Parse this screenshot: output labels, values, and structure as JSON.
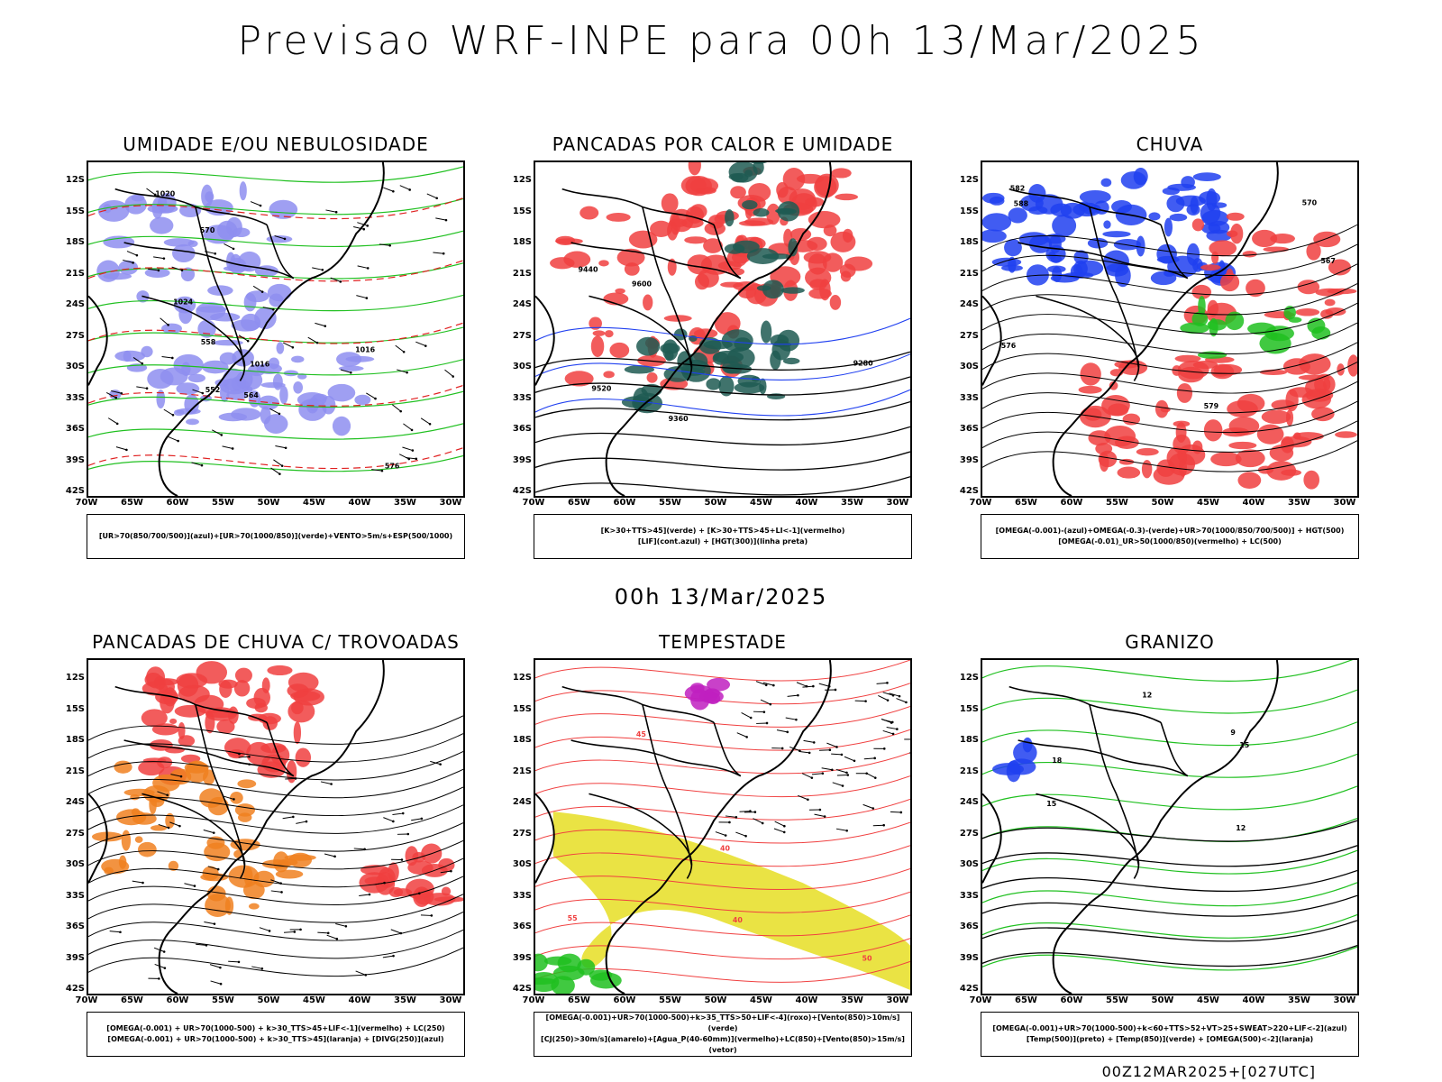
{
  "title": "Previsao WRF-INPE  para 00h 13/Mar/2025",
  "subtitle": "00h 13/Mar/2025",
  "footer": "00Z12MAR2025+[027UTC]",
  "axes": {
    "lat_labels": [
      "12S",
      "15S",
      "18S",
      "21S",
      "24S",
      "27S",
      "30S",
      "33S",
      "36S",
      "39S",
      "42S"
    ],
    "lon_labels": [
      "70W",
      "65W",
      "60W",
      "55W",
      "50W",
      "45W",
      "40W",
      "35W",
      "30W"
    ]
  },
  "panels": [
    {
      "title": "UMIDADE E/OU NEBULOSIDADE",
      "legend": [
        "[UR>70(850/700/500)](azul)+[UR>70(1000/850)](verde)+VENTO>5m/s+ESP(500/1000)"
      ],
      "colors": {
        "blue": "#8e8ef0",
        "green": "#20c020",
        "red": "#e02020"
      },
      "contour_labels": [
        "1016",
        "1024",
        "1020",
        "1016",
        "576",
        "570",
        "564",
        "558",
        "552"
      ]
    },
    {
      "title": "PANCADAS POR CALOR E UMIDADE",
      "legend": [
        "[K>30+TTS>45](verde) + [K>30+TTS>45+LI<-1](vermelho)",
        "[LIF](cont.azul) + [HGT(300)](linha preta)"
      ],
      "colors": {
        "green": "#1e5a52",
        "red": "#f04040",
        "blue": "#2040f0"
      },
      "contour_labels": [
        "9600",
        "9520",
        "9440",
        "9360",
        "9280"
      ]
    },
    {
      "title": "CHUVA",
      "legend": [
        "[OMEGA(-0.001)-(azul)+OMEGA(-0.3)-(verde)+UR>70(1000/850/700/500)] + HGT(500)",
        "[OMEGA(-0.01)_UR>50(1000/850)(vermelho) + LC(500)"
      ],
      "colors": {
        "blue": "#2040f0",
        "green": "#20c020",
        "red": "#f04040"
      },
      "contour_labels": [
        "588",
        "582",
        "576",
        "570",
        "567",
        "579"
      ]
    },
    {
      "title": "PANCADAS DE CHUVA C/ TROVOADAS",
      "legend": [
        "[OMEGA(-0.001) + UR>70(1000-500) + k>30_TTS>45+LIF<-1](vermelho) + LC(250)",
        "[OMEGA(-0.001) + UR>70(1000-500) + k>30_TTS>45](laranja) + [DIVG(250)](azul)"
      ],
      "colors": {
        "red": "#f04040",
        "orange": "#f08020",
        "blue": "#2040f0"
      }
    },
    {
      "title": "TEMPESTADE",
      "legend": [
        "[OMEGA(-0.001)+UR>70(1000-500)+k>35_TTS>50+LIF<-4](roxo)+[Vento(850)>10m/s](verde)",
        "[CJ(250)>30m/s](amarelo)+[Agua_P(40-60mm)](vermelho)+LC(850)+[Vento(850)>15m/s](vetor)"
      ],
      "colors": {
        "yellow": "#e8e030",
        "red": "#f04040",
        "purple": "#c020c0",
        "green": "#20c020"
      },
      "contour_labels": [
        "40",
        "45",
        "50",
        "55",
        "40"
      ]
    },
    {
      "title": "GRANIZO",
      "legend": [
        "[OMEGA(-0.001)+UR>70(1000-500)+k<60+TTS>52+VT>25+SWEAT>220+LIF<-2](azul)",
        "[Temp(500)](preto) + [Temp(850)](verde) + [OMEGA(500)<-2](laranja)"
      ],
      "colors": {
        "green": "#20c020",
        "black": "#000000",
        "blue": "#2040f0"
      },
      "contour_labels": [
        "9",
        "12",
        "15",
        "18",
        "12",
        "15"
      ]
    }
  ]
}
